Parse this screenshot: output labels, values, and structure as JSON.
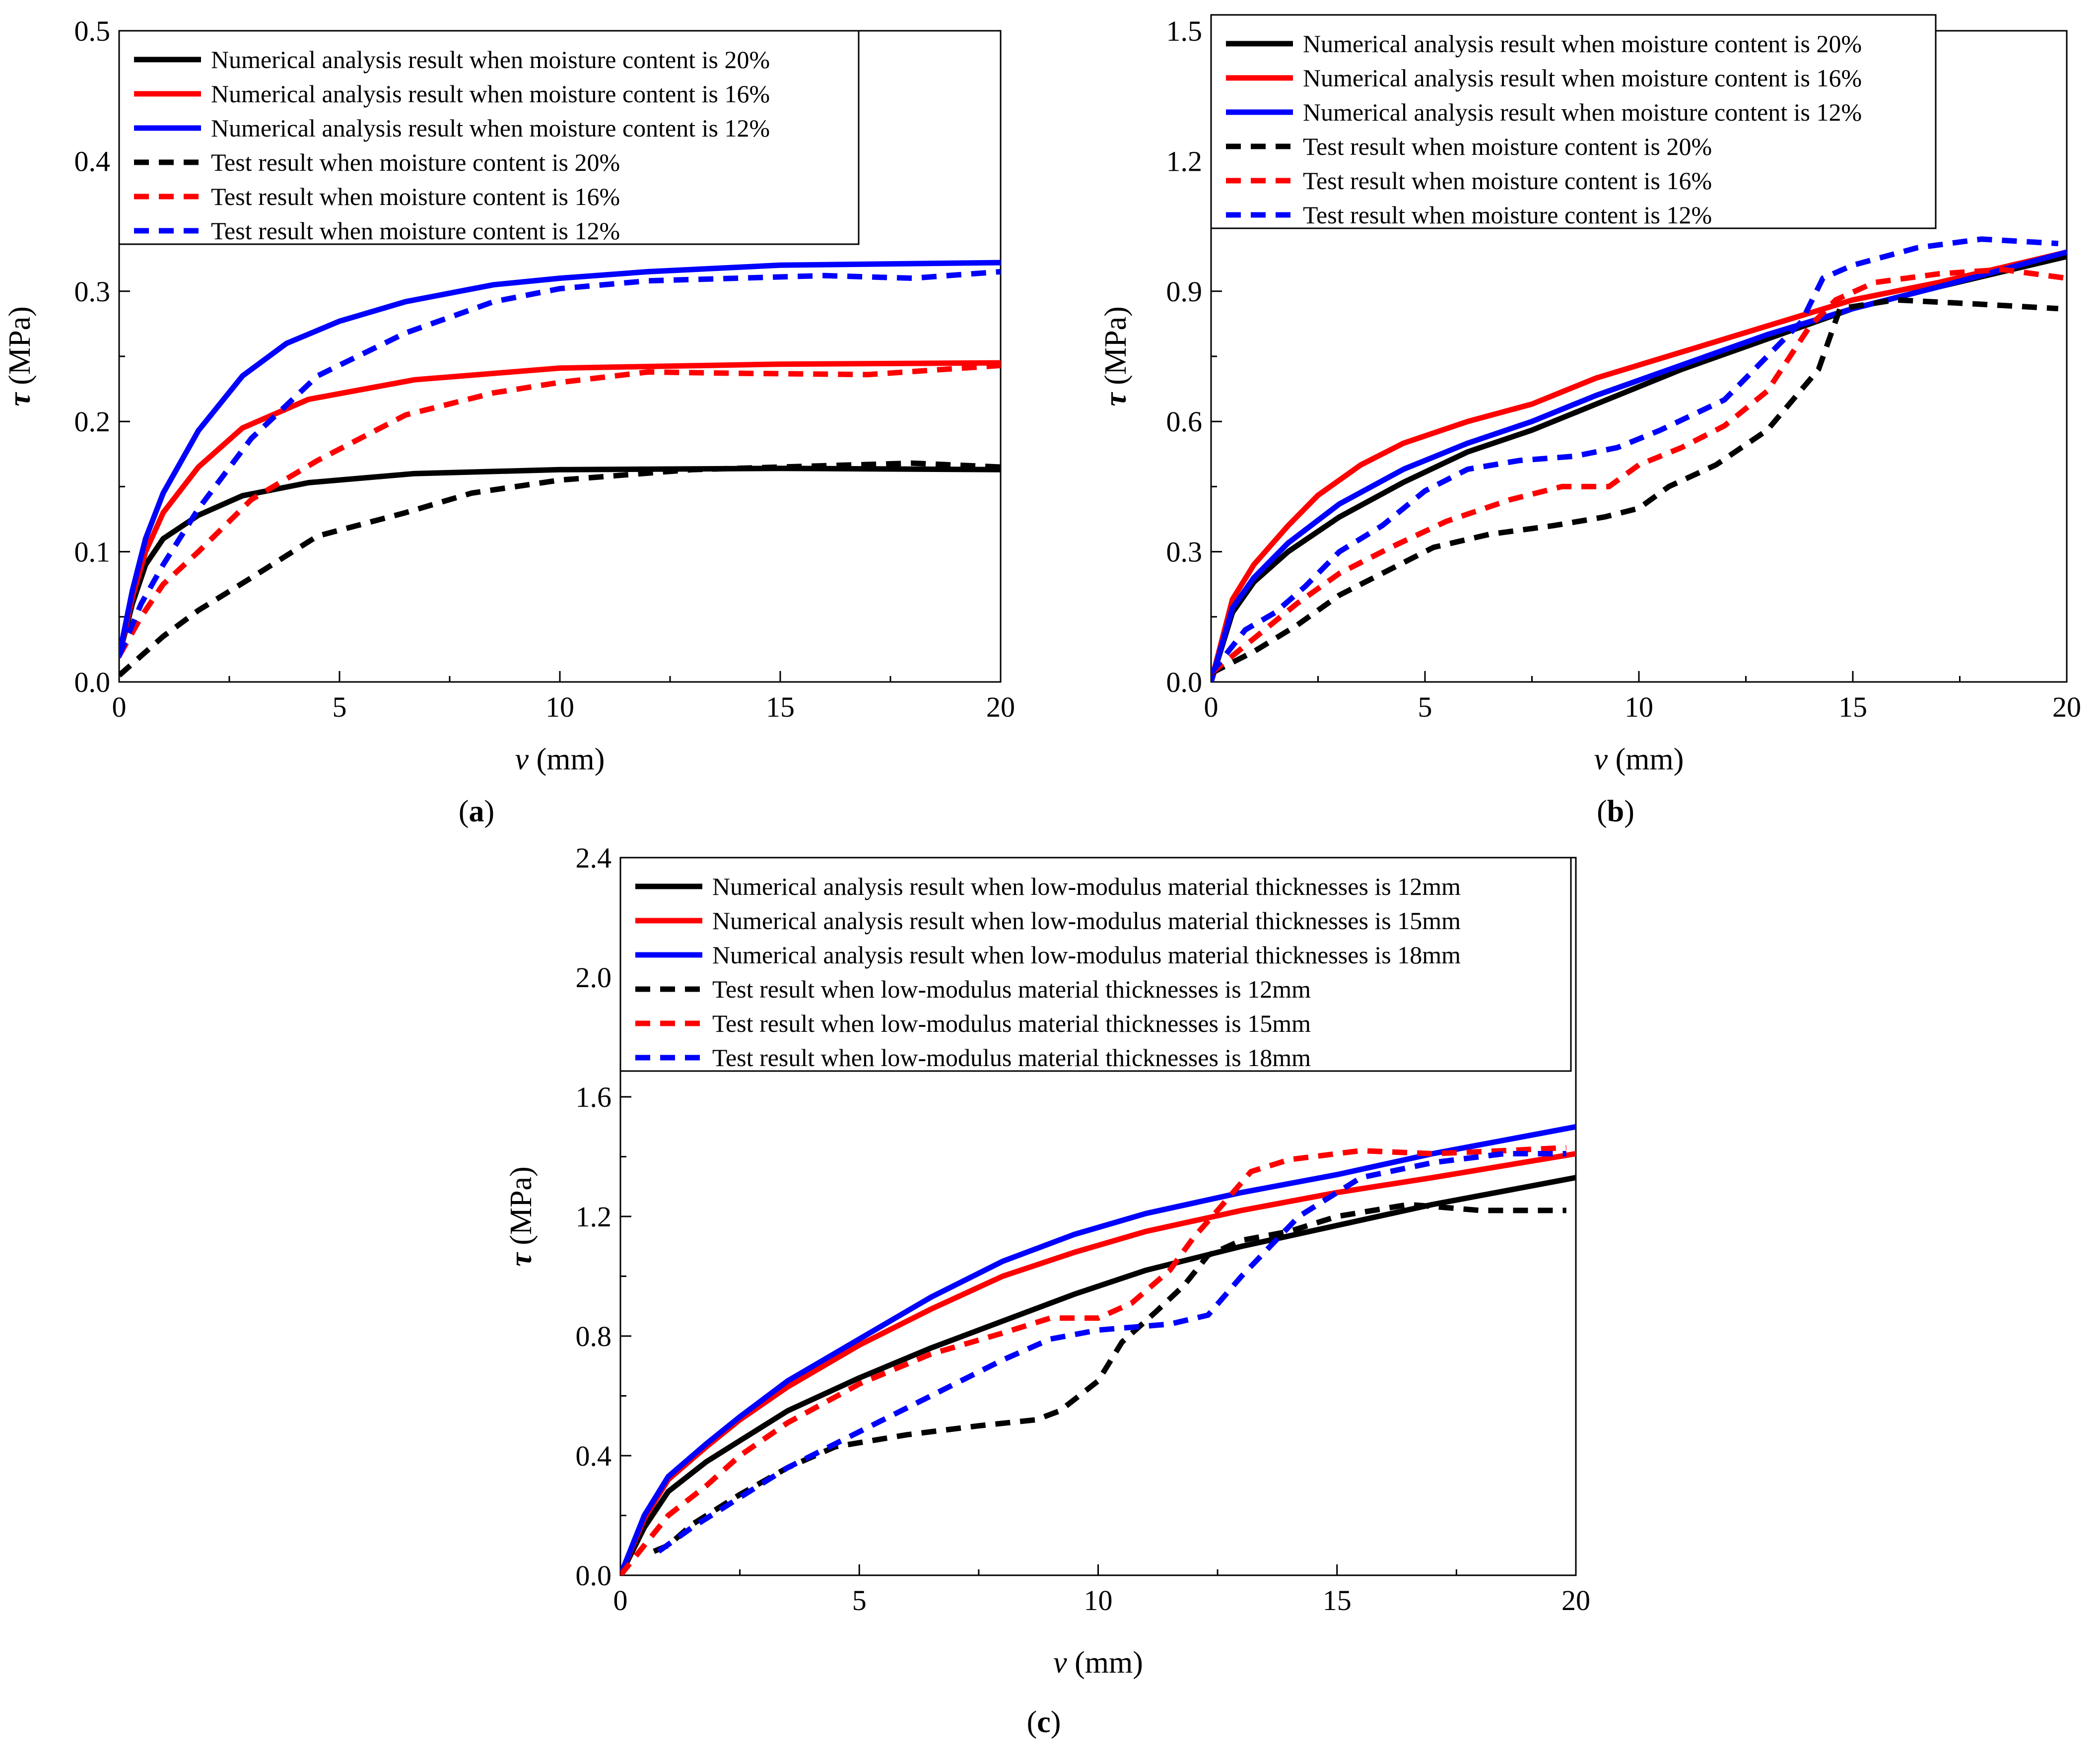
{
  "chart_data": [
    {
      "type": "line",
      "caption": "(a)",
      "caption_letter": "a",
      "xlabel": "(mm)",
      "xlabel_var": "v",
      "ylabel": "(MPa)",
      "ylabel_var": "τ",
      "xlim": [
        0,
        20
      ],
      "ylim": [
        0,
        0.5
      ],
      "xticks": [
        "0",
        "5",
        "10",
        "15",
        "20"
      ],
      "yticks": [
        "0.0",
        "0.1",
        "0.2",
        "0.3",
        "0.4",
        "0.5"
      ],
      "legend_position": "top-left",
      "series": [
        {
          "name": "Numerical analysis result when moisture content is 20%",
          "color": "#000000",
          "style": "solid",
          "x": [
            0,
            0.3,
            0.6,
            1,
            1.8,
            2.8,
            4.3,
            6.7,
            10,
            15,
            20
          ],
          "y": [
            0.02,
            0.06,
            0.09,
            0.11,
            0.128,
            0.143,
            0.153,
            0.16,
            0.163,
            0.164,
            0.163
          ]
        },
        {
          "name": "Numerical analysis result when moisture content is 16%",
          "color": "#ff0000",
          "style": "solid",
          "x": [
            0,
            0.3,
            0.6,
            1,
            1.8,
            2.8,
            4.3,
            6.7,
            10,
            15,
            20
          ],
          "y": [
            0.02,
            0.065,
            0.1,
            0.13,
            0.165,
            0.195,
            0.217,
            0.232,
            0.241,
            0.244,
            0.245
          ]
        },
        {
          "name": "Numerical analysis result when moisture content is 12%",
          "color": "#0000ff",
          "style": "solid",
          "x": [
            0,
            0.3,
            0.6,
            1,
            1.8,
            2.8,
            3.8,
            5,
            6.5,
            8.5,
            10,
            12,
            15,
            20
          ],
          "y": [
            0.02,
            0.07,
            0.11,
            0.145,
            0.193,
            0.235,
            0.26,
            0.277,
            0.292,
            0.305,
            0.31,
            0.315,
            0.32,
            0.322
          ]
        },
        {
          "name": "Test result when moisture content is 20%",
          "color": "#000000",
          "style": "dashed",
          "x": [
            0,
            0.5,
            1,
            1.8,
            3,
            4.5,
            6.5,
            8,
            10,
            13,
            16,
            18,
            20
          ],
          "y": [
            0.005,
            0.02,
            0.035,
            0.055,
            0.08,
            0.112,
            0.13,
            0.145,
            0.155,
            0.163,
            0.166,
            0.168,
            0.165
          ]
        },
        {
          "name": "Test result when moisture content is 16%",
          "color": "#ff0000",
          "style": "dashed",
          "x": [
            0,
            0.5,
            1,
            1.8,
            3,
            4.5,
            6.5,
            8.5,
            10,
            12,
            14,
            17,
            20
          ],
          "y": [
            0.02,
            0.05,
            0.075,
            0.1,
            0.14,
            0.17,
            0.205,
            0.222,
            0.23,
            0.238,
            0.237,
            0.236,
            0.243
          ]
        },
        {
          "name": "Test result when moisture content is 12%",
          "color": "#0000ff",
          "style": "dashed",
          "x": [
            0,
            0.5,
            1,
            1.8,
            3,
            4.5,
            6.5,
            8.5,
            10,
            12,
            14,
            16,
            18,
            20
          ],
          "y": [
            0.02,
            0.06,
            0.09,
            0.133,
            0.187,
            0.235,
            0.268,
            0.292,
            0.302,
            0.308,
            0.31,
            0.312,
            0.31,
            0.315
          ]
        }
      ]
    },
    {
      "type": "line",
      "caption": "(b)",
      "caption_letter": "b",
      "xlabel": "(mm)",
      "xlabel_var": "v",
      "ylabel": "(MPa)",
      "ylabel_var": "τ",
      "xlim": [
        0,
        20
      ],
      "ylim": [
        0,
        1.5
      ],
      "xticks": [
        "0",
        "5",
        "10",
        "15",
        "20"
      ],
      "yticks": [
        "0.0",
        "0.3",
        "0.6",
        "0.9",
        "1.2",
        "1.5"
      ],
      "legend_position": "top-left",
      "series": [
        {
          "name": "Numerical analysis result when moisture content is 20%",
          "color": "#000000",
          "style": "solid",
          "x": [
            0,
            0.5,
            1,
            1.8,
            3,
            4.5,
            6,
            7.5,
            9,
            11,
            13,
            15,
            17,
            20
          ],
          "y": [
            0,
            0.16,
            0.23,
            0.3,
            0.38,
            0.46,
            0.53,
            0.58,
            0.64,
            0.72,
            0.79,
            0.86,
            0.91,
            0.98
          ]
        },
        {
          "name": "Numerical analysis result when moisture content is 16%",
          "color": "#ff0000",
          "style": "solid",
          "x": [
            0,
            0.5,
            1,
            1.8,
            2.5,
            3.5,
            4.5,
            6,
            7.5,
            9,
            11,
            13,
            15,
            17,
            20
          ],
          "y": [
            0,
            0.19,
            0.27,
            0.36,
            0.43,
            0.5,
            0.55,
            0.6,
            0.64,
            0.7,
            0.76,
            0.82,
            0.88,
            0.92,
            0.99
          ]
        },
        {
          "name": "Numerical analysis result when moisture content is 12%",
          "color": "#0000ff",
          "style": "solid",
          "x": [
            0,
            0.5,
            1,
            1.8,
            3,
            4.5,
            6,
            7.5,
            9,
            11,
            13,
            15,
            17,
            20
          ],
          "y": [
            0,
            0.17,
            0.24,
            0.32,
            0.41,
            0.49,
            0.55,
            0.6,
            0.66,
            0.73,
            0.8,
            0.86,
            0.91,
            0.99
          ]
        },
        {
          "name": "Test result when moisture content is 20%",
          "color": "#000000",
          "style": "dashed",
          "x": [
            0,
            1,
            2,
            3,
            4.2,
            5.2,
            6.5,
            8,
            9.2,
            10,
            10.7,
            11.8,
            13,
            14.2,
            14.7,
            16,
            18,
            19.8
          ],
          "y": [
            0.02,
            0.07,
            0.13,
            0.2,
            0.26,
            0.31,
            0.34,
            0.36,
            0.38,
            0.4,
            0.45,
            0.5,
            0.58,
            0.72,
            0.86,
            0.88,
            0.87,
            0.86
          ]
        },
        {
          "name": "Test result when moisture content is 16%",
          "color": "#ff0000",
          "style": "dashed",
          "x": [
            0,
            1,
            2,
            3,
            4.2,
            5.5,
            7,
            8.2,
            9.3,
            10,
            11,
            12,
            13,
            14,
            14.6,
            15.5,
            17,
            18.5,
            20
          ],
          "y": [
            0.02,
            0.1,
            0.18,
            0.25,
            0.31,
            0.37,
            0.42,
            0.45,
            0.45,
            0.5,
            0.54,
            0.59,
            0.67,
            0.82,
            0.88,
            0.92,
            0.94,
            0.95,
            0.93
          ]
        },
        {
          "name": "Test result when moisture content is 12%",
          "color": "#0000ff",
          "style": "dashed",
          "x": [
            0,
            0.8,
            1.5,
            2.2,
            3,
            4,
            5,
            6,
            7.2,
            8.5,
            9.5,
            10.5,
            12,
            13,
            13.8,
            14.3,
            15,
            16.5,
            18,
            19.8
          ],
          "y": [
            0.02,
            0.12,
            0.16,
            0.22,
            0.3,
            0.36,
            0.44,
            0.49,
            0.51,
            0.52,
            0.54,
            0.58,
            0.65,
            0.75,
            0.83,
            0.93,
            0.96,
            1.0,
            1.02,
            1.01
          ]
        }
      ]
    },
    {
      "type": "line",
      "caption": "(c)",
      "caption_letter": "c",
      "xlabel": "(mm)",
      "xlabel_var": "v",
      "ylabel": "(MPa)",
      "ylabel_var": "τ",
      "xlim": [
        0,
        20
      ],
      "ylim": [
        0,
        2.4
      ],
      "xticks": [
        "0",
        "5",
        "10",
        "15",
        "20"
      ],
      "yticks": [
        "0.0",
        "0.4",
        "0.8",
        "1.2",
        "1.6",
        "2.0",
        "2.4"
      ],
      "legend_position": "top-left",
      "series": [
        {
          "name": "Numerical analysis result when low-modulus material thicknesses is 12mm",
          "color": "#000000",
          "style": "solid",
          "x": [
            0,
            0.5,
            1,
            1.8,
            2.5,
            3.5,
            5,
            6.5,
            8,
            9.5,
            11,
            13,
            15,
            17,
            20
          ],
          "y": [
            0,
            0.16,
            0.28,
            0.38,
            0.45,
            0.55,
            0.66,
            0.76,
            0.85,
            0.94,
            1.02,
            1.1,
            1.17,
            1.24,
            1.33
          ]
        },
        {
          "name": "Numerical analysis result when low-modulus material thicknesses is 15mm",
          "color": "#ff0000",
          "style": "solid",
          "x": [
            0,
            0.5,
            1,
            1.8,
            2.5,
            3.5,
            5,
            6.5,
            8,
            9.5,
            11,
            13,
            15,
            17,
            20
          ],
          "y": [
            0,
            0.19,
            0.32,
            0.43,
            0.52,
            0.63,
            0.77,
            0.89,
            1.0,
            1.08,
            1.15,
            1.22,
            1.28,
            1.33,
            1.41
          ]
        },
        {
          "name": "Numerical analysis result when low-modulus material thicknesses is 18mm",
          "color": "#0000ff",
          "style": "solid",
          "x": [
            0,
            0.5,
            1,
            1.8,
            2.5,
            3.5,
            5,
            6.5,
            8,
            9.5,
            11,
            13,
            15,
            17,
            20
          ],
          "y": [
            0,
            0.2,
            0.33,
            0.44,
            0.53,
            0.65,
            0.79,
            0.93,
            1.05,
            1.14,
            1.21,
            1.28,
            1.34,
            1.41,
            1.5
          ]
        },
        {
          "name": "Test result when low-modulus material thicknesses is 12mm",
          "color": "#000000",
          "style": "dashed",
          "x": [
            0.7,
            1,
            1.5,
            2.5,
            3.5,
            4.5,
            6,
            7.5,
            8.7,
            9.2,
            10,
            10.5,
            11.2,
            11.8,
            12.3,
            13,
            14,
            15,
            16.5,
            18,
            19.8
          ],
          "y": [
            0.08,
            0.1,
            0.17,
            0.27,
            0.36,
            0.43,
            0.47,
            0.5,
            0.52,
            0.55,
            0.65,
            0.78,
            0.88,
            0.97,
            1.07,
            1.12,
            1.15,
            1.2,
            1.24,
            1.22,
            1.22
          ]
        },
        {
          "name": "Test result when low-modulus material thicknesses is 15mm",
          "color": "#ff0000",
          "style": "dashed",
          "x": [
            0,
            0.5,
            1,
            1.8,
            2.5,
            3.5,
            5,
            6.5,
            8,
            9,
            10,
            10.7,
            11.5,
            12,
            12.5,
            13.2,
            14,
            15.5,
            17,
            18.5,
            19.8
          ],
          "y": [
            0,
            0.1,
            0.2,
            0.3,
            0.4,
            0.51,
            0.64,
            0.74,
            0.81,
            0.86,
            0.86,
            0.91,
            1.02,
            1.13,
            1.22,
            1.35,
            1.39,
            1.42,
            1.41,
            1.42,
            1.43
          ]
        },
        {
          "name": "Test result when low-modulus material thicknesses is 18mm",
          "color": "#0000ff",
          "style": "dashed",
          "x": [
            0.8,
            1.5,
            2.5,
            3.5,
            4.5,
            5.5,
            6.5,
            8,
            9,
            10,
            11.5,
            12.3,
            13,
            13.6,
            14.2,
            15.5,
            17,
            18.5,
            19.8
          ],
          "y": [
            0.08,
            0.16,
            0.26,
            0.36,
            0.44,
            0.52,
            0.6,
            0.72,
            0.79,
            0.82,
            0.84,
            0.87,
            1.0,
            1.1,
            1.2,
            1.33,
            1.38,
            1.41,
            1.41
          ]
        }
      ]
    }
  ]
}
